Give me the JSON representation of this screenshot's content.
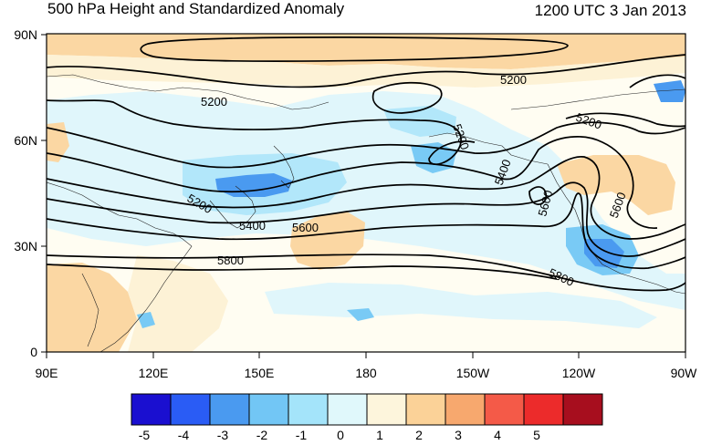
{
  "header": {
    "title": "500 hPa Height and Standardized Anomaly",
    "timestamp": "1200 UTC 3 Jan 2013"
  },
  "map": {
    "lat_ticks": [
      "90N",
      "60N",
      "30N",
      "0"
    ],
    "lon_ticks": [
      "90E",
      "120E",
      "150E",
      "180",
      "150W",
      "120W",
      "90W"
    ],
    "contour_labels": [
      {
        "text": "5200"
      },
      {
        "text": "5200"
      },
      {
        "text": "5200"
      },
      {
        "text": "5200"
      },
      {
        "text": "5200"
      },
      {
        "text": "5400"
      },
      {
        "text": "5400"
      },
      {
        "text": "5600"
      },
      {
        "text": "5600"
      },
      {
        "text": "5600"
      },
      {
        "text": "5800"
      },
      {
        "text": "5800"
      }
    ]
  },
  "colorbar": {
    "colors": [
      "#1a0fd0",
      "#2a5cf5",
      "#4a9af0",
      "#72c6f5",
      "#a4e4fa",
      "#e0f8fb",
      "#fdf5dc",
      "#fbd298",
      "#f7a86e",
      "#f45a48",
      "#ec2b2b",
      "#a70e1e"
    ],
    "labels": [
      "-5",
      "-4",
      "-3",
      "-2",
      "-1",
      "0",
      "1",
      "2",
      "3",
      "4",
      "5"
    ]
  },
  "anomaly_colors": {
    "neutral": "#fffdf2",
    "pos1": "#fdf2d6",
    "pos2": "#fbd7a3",
    "neg1": "#e0f6fb",
    "neg2": "#b2e7fa",
    "neg3": "#79caf5",
    "neg4": "#4a9af0"
  }
}
